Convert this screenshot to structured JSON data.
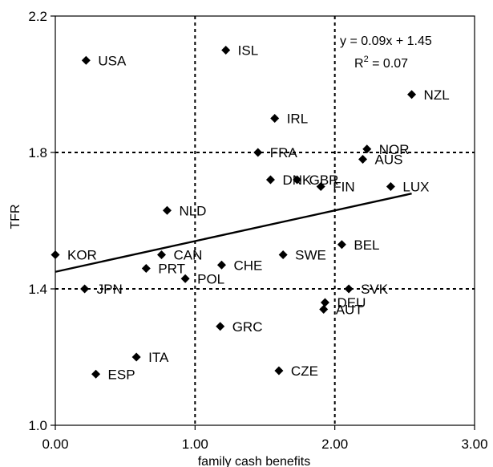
{
  "chart_data": {
    "type": "scatter",
    "xlabel": "family cash benefits",
    "ylabel": "TFR",
    "xlim": [
      0,
      3
    ],
    "ylim": [
      1.0,
      2.2
    ],
    "x_ticks": [
      "0.00",
      "1.00",
      "2.00",
      "3.00"
    ],
    "y_ticks": [
      "1.0",
      "1.4",
      "1.8",
      "2.2"
    ],
    "x_tick_values": [
      0,
      1,
      2,
      3
    ],
    "y_tick_values": [
      1.0,
      1.4,
      1.8,
      2.2
    ],
    "grid": "dashed at x=1,2 and y=1.4,1.8",
    "points": [
      {
        "label": "USA",
        "x": 0.22,
        "y": 2.07
      },
      {
        "label": "ISL",
        "x": 1.22,
        "y": 2.1
      },
      {
        "label": "NZL",
        "x": 2.55,
        "y": 1.97
      },
      {
        "label": "IRL",
        "x": 1.57,
        "y": 1.9
      },
      {
        "label": "NOR",
        "x": 2.23,
        "y": 1.81
      },
      {
        "label": "FRA",
        "x": 1.45,
        "y": 1.8
      },
      {
        "label": "AUS",
        "x": 2.2,
        "y": 1.78
      },
      {
        "label": "DNK",
        "x": 1.54,
        "y": 1.72
      },
      {
        "label": "GBR",
        "x": 1.73,
        "y": 1.72
      },
      {
        "label": "FIN",
        "x": 1.9,
        "y": 1.7
      },
      {
        "label": "LUX",
        "x": 2.4,
        "y": 1.7
      },
      {
        "label": "NLD",
        "x": 0.8,
        "y": 1.63
      },
      {
        "label": "KOR",
        "x": 0.0,
        "y": 1.5
      },
      {
        "label": "CAN",
        "x": 0.76,
        "y": 1.5
      },
      {
        "label": "BEL",
        "x": 2.05,
        "y": 1.53
      },
      {
        "label": "SWE",
        "x": 1.63,
        "y": 1.5
      },
      {
        "label": "CHE",
        "x": 1.19,
        "y": 1.47
      },
      {
        "label": "PRT",
        "x": 0.65,
        "y": 1.46
      },
      {
        "label": "POL",
        "x": 0.93,
        "y": 1.43
      },
      {
        "label": "JPN",
        "x": 0.21,
        "y": 1.4
      },
      {
        "label": "SVK",
        "x": 2.1,
        "y": 1.4
      },
      {
        "label": "DEU",
        "x": 1.93,
        "y": 1.36
      },
      {
        "label": "AUT",
        "x": 1.92,
        "y": 1.34
      },
      {
        "label": "GRC",
        "x": 1.18,
        "y": 1.29
      },
      {
        "label": "ITA",
        "x": 0.58,
        "y": 1.2
      },
      {
        "label": "CZE",
        "x": 1.6,
        "y": 1.16
      },
      {
        "label": "ESP",
        "x": 0.29,
        "y": 1.15
      }
    ],
    "trendline": {
      "slope": 0.09,
      "intercept": 1.45,
      "x_range": [
        0,
        2.55
      ]
    },
    "equation_text": "y = 0.09x + 1.45",
    "r2_label": "R",
    "r2_sup": "2",
    "r2_value": " = 0.07"
  }
}
